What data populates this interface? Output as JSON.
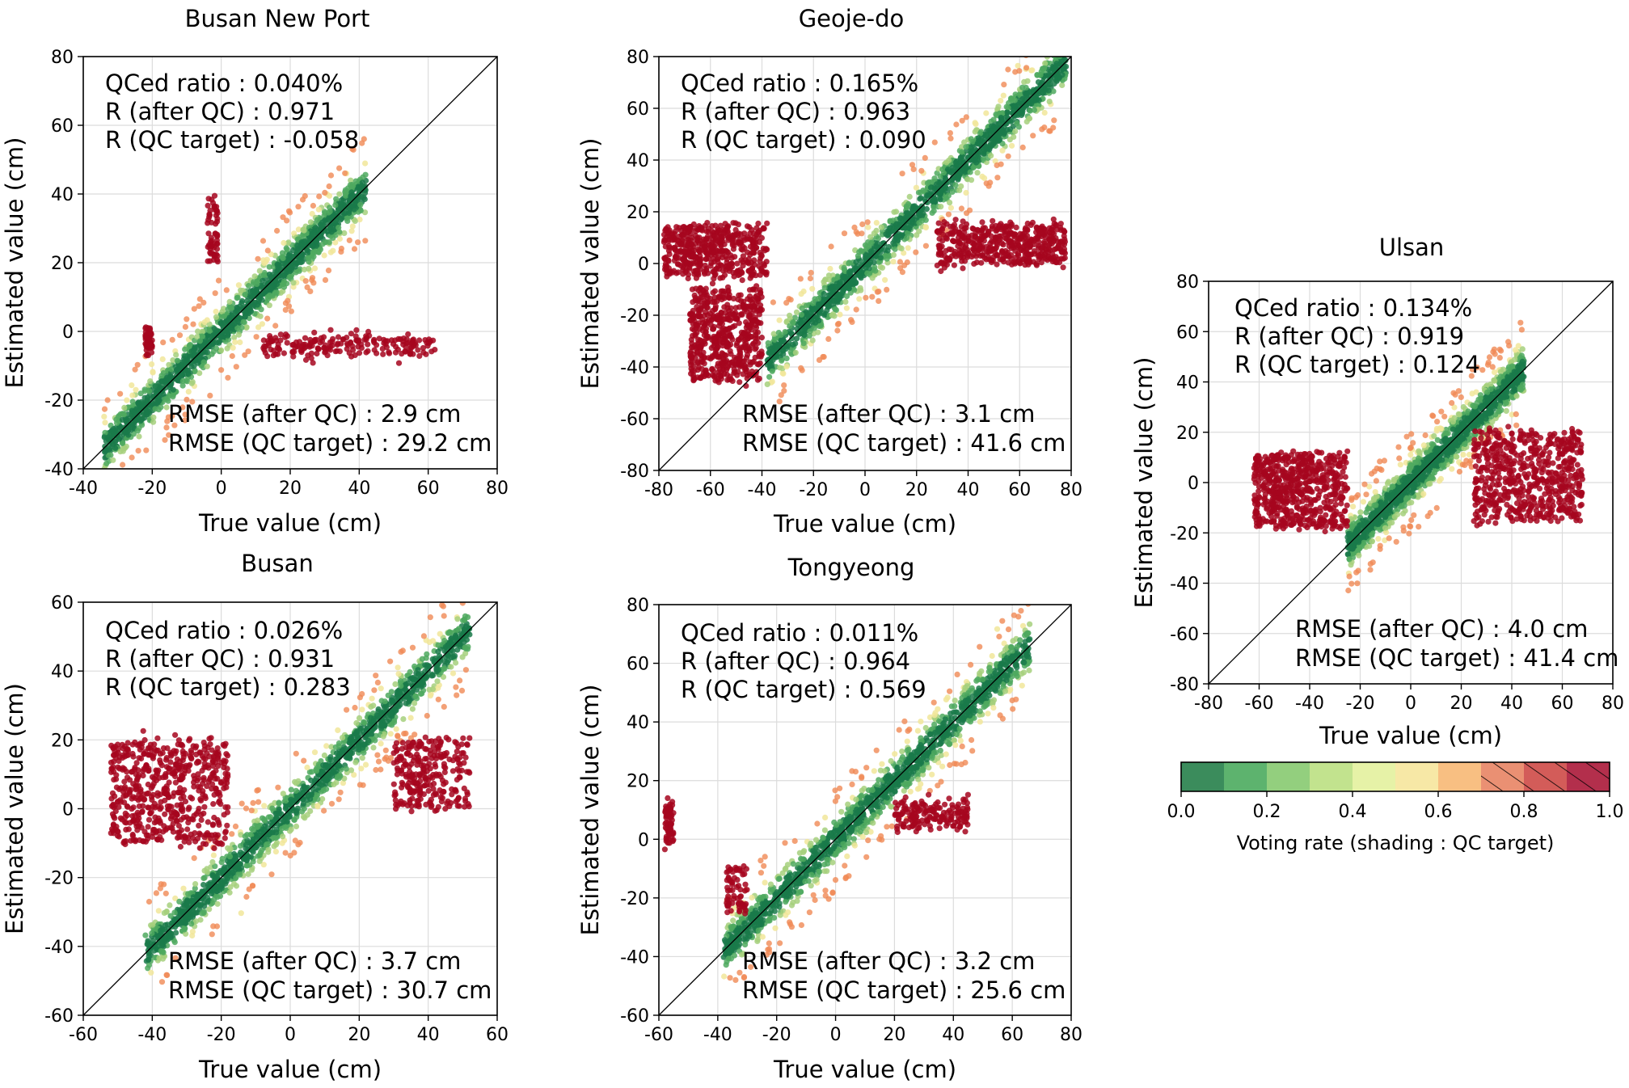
{
  "chart_data": [
    {
      "type": "scatter",
      "title": "Busan New Port",
      "xlabel": "True value (cm)",
      "ylabel": "Estimated value (cm)",
      "xlim": [
        -40,
        80
      ],
      "ylim": [
        -40,
        80
      ],
      "ticks": [
        "-40",
        "-20",
        "0",
        "20",
        "40",
        "60",
        "80"
      ],
      "grid": true,
      "stats": [
        "QCed ratio : 0.040%",
        "R (after QC) : 0.971",
        "R (QC target) : -0.058"
      ],
      "rmse": [
        "RMSE (after QC) : 2.9 cm",
        "RMSE (QC target) : 29.2 cm"
      ],
      "main_cloud": {
        "x_range": [
          -34,
          42
        ],
        "slope": 1.0
      },
      "qc_clusters": [
        {
          "x": [
            12,
            62
          ],
          "y": [
            -2,
            -6
          ]
        },
        {
          "x": [
            -22,
            -20
          ],
          "y": [
            -5,
            0
          ]
        },
        {
          "x": [
            -4,
            -1
          ],
          "y": [
            20,
            38
          ]
        }
      ]
    },
    {
      "type": "scatter",
      "title": "Geoje-do",
      "xlabel": "True value (cm)",
      "ylabel": "Estimated value (cm)",
      "xlim": [
        -80,
        80
      ],
      "ylim": [
        -80,
        80
      ],
      "ticks": [
        "-80",
        "-60",
        "-40",
        "-20",
        "0",
        "20",
        "40",
        "60",
        "80"
      ],
      "grid": true,
      "stats": [
        "QCed ratio : 0.165%",
        "R (after QC) : 0.963",
        "R (QC target) : 0.090"
      ],
      "rmse": [
        "RMSE (after QC) : 3.1 cm",
        "RMSE (QC target) : 41.6 cm"
      ],
      "main_cloud": {
        "x_range": [
          -38,
          78
        ],
        "slope": 1.0
      },
      "qc_clusters": [
        {
          "x": [
            -78,
            -38
          ],
          "y": [
            -5,
            15
          ]
        },
        {
          "x": [
            28,
            78
          ],
          "y": [
            0,
            15
          ]
        },
        {
          "x": [
            -68,
            -40
          ],
          "y": [
            -45,
            -10
          ]
        }
      ]
    },
    {
      "type": "scatter",
      "title": "Ulsan",
      "xlabel": "True value (cm)",
      "ylabel": "Estimated value (cm)",
      "xlim": [
        -80,
        80
      ],
      "ylim": [
        -80,
        80
      ],
      "ticks": [
        "-80",
        "-60",
        "-40",
        "-20",
        "0",
        "20",
        "40",
        "60",
        "80"
      ],
      "grid": true,
      "stats": [
        "QCed ratio : 0.134%",
        "R (after QC) : 0.919",
        "R (QC target) : 0.124"
      ],
      "rmse": [
        "RMSE (after QC) : 4.0 cm",
        "RMSE (QC target) : 41.4 cm"
      ],
      "main_cloud": {
        "x_range": [
          -25,
          45
        ],
        "slope": 1.0
      },
      "qc_clusters": [
        {
          "x": [
            -62,
            -25
          ],
          "y": [
            -18,
            12
          ]
        },
        {
          "x": [
            25,
            68
          ],
          "y": [
            -15,
            20
          ]
        }
      ]
    },
    {
      "type": "scatter",
      "title": "Busan",
      "xlabel": "True value (cm)",
      "ylabel": "Estimated value (cm)",
      "xlim": [
        -60,
        60
      ],
      "ylim": [
        -60,
        60
      ],
      "ticks": [
        "-60",
        "-40",
        "-20",
        "0",
        "20",
        "40",
        "60"
      ],
      "grid": true,
      "stats": [
        "QCed ratio : 0.026%",
        "R (after QC) : 0.931",
        "R (QC target) : 0.283"
      ],
      "rmse": [
        "RMSE (after QC) : 3.7 cm",
        "RMSE (QC target) : 30.7 cm"
      ],
      "main_cloud": {
        "x_range": [
          -42,
          52
        ],
        "slope": 1.0
      },
      "qc_clusters": [
        {
          "x": [
            -52,
            -18
          ],
          "y": [
            -10,
            20
          ]
        },
        {
          "x": [
            30,
            52
          ],
          "y": [
            0,
            20
          ]
        }
      ]
    },
    {
      "type": "scatter",
      "title": "Tongyeong",
      "xlabel": "True value (cm)",
      "ylabel": "Estimated value (cm)",
      "xlim": [
        -60,
        80
      ],
      "ylim": [
        -60,
        80
      ],
      "ticks": [
        "-60",
        "-40",
        "-20",
        "0",
        "20",
        "40",
        "60",
        "80"
      ],
      "grid": true,
      "stats": [
        "QCed ratio : 0.011%",
        "R (after QC) : 0.964",
        "R (QC target) : 0.569"
      ],
      "rmse": [
        "RMSE (after QC) : 3.2 cm",
        "RMSE (QC target) : 25.6 cm"
      ],
      "main_cloud": {
        "x_range": [
          -38,
          66
        ],
        "slope": 1.0
      },
      "qc_clusters": [
        {
          "x": [
            20,
            45
          ],
          "y": [
            4,
            13
          ]
        },
        {
          "x": [
            -58,
            -55
          ],
          "y": [
            -2,
            12
          ]
        },
        {
          "x": [
            -37,
            -30
          ],
          "y": [
            -25,
            -10
          ]
        }
      ]
    }
  ],
  "colorbar": {
    "label": "Voting rate (shading : QC target)",
    "ticks": [
      "0.0",
      "0.2",
      "0.4",
      "0.6",
      "0.8",
      "1.0"
    ],
    "range": [
      0,
      1
    ],
    "hatched_from": 0.7,
    "bins": [
      {
        "from": 0.0,
        "to": 0.1,
        "color": "#3b8c5c"
      },
      {
        "from": 0.1,
        "to": 0.2,
        "color": "#5db36e"
      },
      {
        "from": 0.2,
        "to": 0.3,
        "color": "#93cf7e"
      },
      {
        "from": 0.3,
        "to": 0.4,
        "color": "#c2e38e"
      },
      {
        "from": 0.4,
        "to": 0.5,
        "color": "#e6f2a7"
      },
      {
        "from": 0.5,
        "to": 0.6,
        "color": "#f7e8a6"
      },
      {
        "from": 0.6,
        "to": 0.7,
        "color": "#f8bf82"
      },
      {
        "from": 0.7,
        "to": 0.8,
        "color": "#ea9073"
      },
      {
        "from": 0.8,
        "to": 0.9,
        "color": "#d35c59"
      },
      {
        "from": 0.9,
        "to": 1.0,
        "color": "#b32f4c"
      }
    ]
  },
  "colors": {
    "low": "#1a7a4a",
    "mid_low": "#4fa95f",
    "mid": "#a6d07c",
    "mid_high": "#f1e69a",
    "orange": "#f08a55",
    "red": "#a6061f"
  }
}
